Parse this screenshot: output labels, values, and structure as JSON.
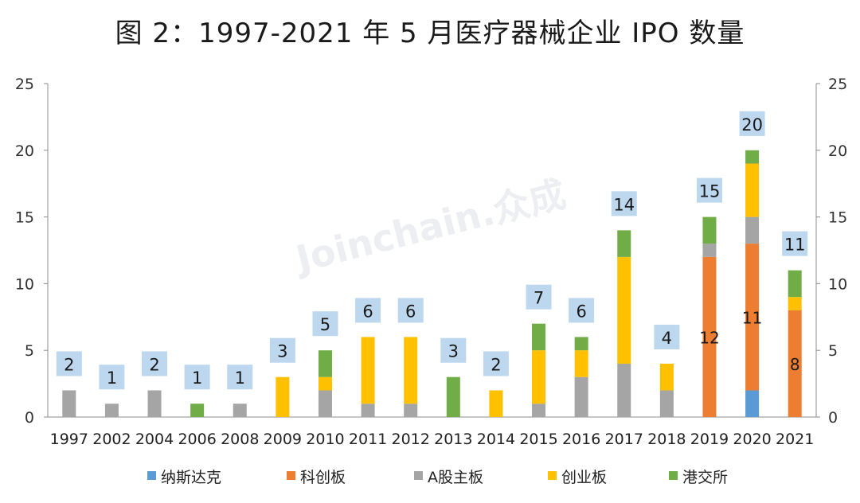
{
  "chart_data": {
    "type": "bar",
    "stacked": true,
    "title": "图 2：1997-2021 年 5 月医疗器械企业 IPO 数量",
    "categories": [
      "1997",
      "2002",
      "2004",
      "2006",
      "2008",
      "2009",
      "2010",
      "2011",
      "2012",
      "2013",
      "2014",
      "2015",
      "2016",
      "2017",
      "2018",
      "2019",
      "2020",
      "2021"
    ],
    "series": [
      {
        "name": "纳斯达克",
        "color": "#5B9BD5",
        "values": [
          0,
          0,
          0,
          0,
          0,
          0,
          0,
          0,
          0,
          0,
          0,
          0,
          0,
          0,
          0,
          0,
          2,
          0
        ]
      },
      {
        "name": "科创板",
        "color": "#ED7D31",
        "values": [
          0,
          0,
          0,
          0,
          0,
          0,
          0,
          0,
          0,
          0,
          0,
          0,
          0,
          0,
          0,
          12,
          11,
          8
        ]
      },
      {
        "name": "A股主板",
        "color": "#A5A5A5",
        "values": [
          2,
          1,
          2,
          0,
          1,
          0,
          2,
          1,
          1,
          0,
          0,
          1,
          3,
          4,
          2,
          1,
          2,
          0
        ]
      },
      {
        "name": "创业板",
        "color": "#FFC000",
        "values": [
          0,
          0,
          0,
          0,
          0,
          3,
          1,
          5,
          5,
          0,
          2,
          4,
          2,
          8,
          2,
          0,
          4,
          1
        ]
      },
      {
        "name": "港交所",
        "color": "#70AD47",
        "values": [
          0,
          0,
          0,
          1,
          0,
          0,
          2,
          0,
          0,
          3,
          0,
          2,
          1,
          2,
          0,
          2,
          1,
          2
        ]
      }
    ],
    "totals": [
      2,
      1,
      2,
      1,
      1,
      3,
      5,
      6,
      6,
      3,
      2,
      7,
      6,
      14,
      4,
      15,
      20,
      11
    ],
    "inner_labels": [
      {
        "category": "2019",
        "series": "科创板",
        "text": "12"
      },
      {
        "category": "2020",
        "series": "科创板",
        "text": "11"
      },
      {
        "category": "2021",
        "series": "科创板",
        "text": "8"
      }
    ],
    "ylim": [
      0,
      25
    ],
    "yticks": [
      "0",
      "5",
      "10",
      "15",
      "20",
      "25"
    ],
    "y_axis_both_sides": true,
    "grid": false,
    "legend_position": "bottom",
    "total_label_bg": "#BDD7EE",
    "watermark": "Joinchain.众成"
  }
}
